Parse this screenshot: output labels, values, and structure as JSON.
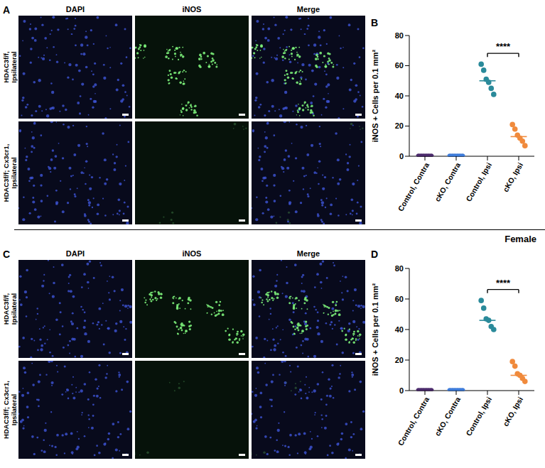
{
  "image_panels": [
    {
      "letter": "A",
      "columns": [
        "DAPI",
        "iNOS",
        "Merge"
      ],
      "rows": [
        "HDAC3f/f, Ipsilateral",
        "HDAC3f/f; Cx3cr1, Ipsilateral"
      ]
    },
    {
      "letter": "C",
      "columns": [
        "DAPI",
        "iNOS",
        "Merge"
      ],
      "rows": [
        "HDAC3f/f, Ipsilateral",
        "HDAC3f/f; Cx3cr1, Ipsilateral"
      ]
    }
  ],
  "chart_letters": [
    "B",
    "D"
  ],
  "section_label": "Female",
  "chart_data": [
    {
      "type": "strip",
      "y_label": "iNOS + Cells per 0.1 mm²",
      "categories": [
        "Control, Contra",
        "cKO, Contra",
        "Control, Ipsi",
        "cKO, Ipsi"
      ],
      "values": [
        [
          0,
          0,
          0,
          0,
          0,
          0
        ],
        [
          0,
          0,
          0,
          0,
          0,
          0
        ],
        [
          61,
          57,
          51,
          49,
          45,
          41
        ],
        [
          21,
          18,
          14,
          12,
          10,
          7
        ]
      ],
      "medians": [
        0,
        0,
        50,
        13
      ],
      "colors": [
        "#4b2a6b",
        "#3d7bd9",
        "#2a8a9a",
        "#f08a3c"
      ],
      "ylim": [
        0,
        80
      ],
      "yticks": [
        0,
        20,
        40,
        60,
        80
      ],
      "annotations": [
        {
          "text": "****",
          "between": [
            "Control, Ipsi",
            "cKO, Ipsi"
          ]
        }
      ]
    },
    {
      "type": "strip",
      "y_label": "iNOS + Cells per 0.1 mm²",
      "categories": [
        "Control, Contra",
        "cKO, Contra",
        "Control, Ipsi",
        "cKO, Ipsi"
      ],
      "values": [
        [
          0,
          0,
          0,
          0,
          0,
          0
        ],
        [
          0,
          0,
          0,
          0,
          0,
          0
        ],
        [
          59,
          54,
          47,
          46,
          42,
          40
        ],
        [
          19,
          16,
          11,
          10,
          8,
          6
        ]
      ],
      "medians": [
        0,
        0,
        46,
        10
      ],
      "colors": [
        "#4b2a6b",
        "#3d7bd9",
        "#2a8a9a",
        "#f08a3c"
      ],
      "ylim": [
        0,
        80
      ],
      "yticks": [
        0,
        20,
        40,
        60,
        80
      ],
      "annotations": [
        {
          "text": "****",
          "between": [
            "Control, Ipsi",
            "cKO, Ipsi"
          ]
        }
      ]
    }
  ]
}
